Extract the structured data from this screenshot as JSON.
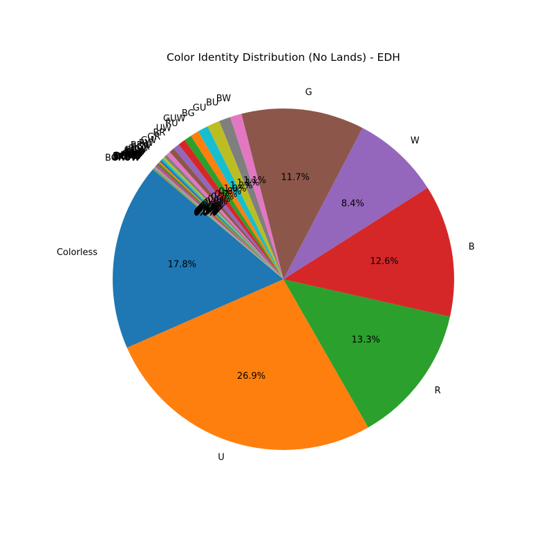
{
  "chart_data": {
    "type": "pie",
    "title": "Color Identity Distribution (No Lands) - EDH",
    "start_angle_deg": 140,
    "direction": "counterclockwise",
    "legend": "none",
    "slices": [
      {
        "label": "Colorless",
        "value": 17.8,
        "pct_text": "17.8%",
        "color": "#1f77b4"
      },
      {
        "label": "U",
        "value": 26.9,
        "pct_text": "26.9%",
        "color": "#ff7f0e"
      },
      {
        "label": "R",
        "value": 13.3,
        "pct_text": "13.3%",
        "color": "#2ca02c"
      },
      {
        "label": "B",
        "value": 12.6,
        "pct_text": "12.6%",
        "color": "#d62728"
      },
      {
        "label": "W",
        "value": 8.4,
        "pct_text": "8.4%",
        "color": "#9467bd"
      },
      {
        "label": "G",
        "value": 11.7,
        "pct_text": "11.7%",
        "color": "#8c564b"
      },
      {
        "label": "BW",
        "value": 1.1,
        "pct_text": "1.1%",
        "color": "#e377c2"
      },
      {
        "label": "BU",
        "value": 1.1,
        "pct_text": "1.1%",
        "color": "#7f7f7f"
      },
      {
        "label": "GU",
        "value": 1.2,
        "pct_text": "1.2%",
        "color": "#bcbd22"
      },
      {
        "label": "BG",
        "value": 1.0,
        "pct_text": "1.0%",
        "color": "#17becf"
      },
      {
        "label": "GUW",
        "value": 0.8,
        "pct_text": "0.8%",
        "color": "#ff7f0e"
      },
      {
        "label": "RU",
        "value": 0.7,
        "pct_text": "0.7%",
        "color": "#2ca02c"
      },
      {
        "label": "UW",
        "value": 0.7,
        "pct_text": "0.7%",
        "color": "#d62728"
      },
      {
        "label": "BR",
        "value": 0.6,
        "pct_text": "0.6%",
        "color": "#9467bd"
      },
      {
        "label": "GR",
        "value": 0.5,
        "pct_text": "0.5%",
        "color": "#8c564b"
      },
      {
        "label": "GW",
        "value": 0.4,
        "pct_text": "0.4%",
        "color": "#e377c2"
      },
      {
        "label": "RW",
        "value": 0.3,
        "pct_text": "0.3%",
        "color": "#7f7f7f"
      },
      {
        "label": "BRW",
        "value": 0.2,
        "pct_text": "0.2%",
        "color": "#bcbd22"
      },
      {
        "label": "BGR",
        "value": 0.2,
        "pct_text": "0.2%",
        "color": "#17becf"
      },
      {
        "label": "BGU",
        "value": 0.2,
        "pct_text": "0.2%",
        "color": "#1f77b4"
      },
      {
        "label": "BGW",
        "value": 0.15,
        "pct_text": "0.1%",
        "color": "#ff7f0e"
      },
      {
        "label": "BUW",
        "value": 0.15,
        "pct_text": "0.1%",
        "color": "#2ca02c"
      },
      {
        "label": "BRU",
        "value": 0.1,
        "pct_text": "0.1%",
        "color": "#d62728"
      },
      {
        "label": "GRW",
        "value": 0.1,
        "pct_text": "0.1%",
        "color": "#9467bd"
      },
      {
        "label": "GRU",
        "value": 0.1,
        "pct_text": "0.1%",
        "color": "#8c564b"
      },
      {
        "label": "RUW",
        "value": 0.1,
        "pct_text": "0.1%",
        "color": "#e377c2"
      },
      {
        "label": "BGRW",
        "value": 0.05,
        "pct_text": "0.0%",
        "color": "#7f7f7f"
      },
      {
        "label": "BGUW",
        "value": 0.05,
        "pct_text": "0.0%",
        "color": "#bcbd22"
      },
      {
        "label": "BGRU",
        "value": 0.05,
        "pct_text": "0.0%",
        "color": "#17becf"
      },
      {
        "label": "BRUW",
        "value": 0.05,
        "pct_text": "0.0%",
        "color": "#1f77b4"
      },
      {
        "label": "GRUW",
        "value": 0.05,
        "pct_text": "0.0%",
        "color": "#ff7f0e"
      },
      {
        "label": "BGRUW",
        "value": 0.05,
        "pct_text": "0.0%",
        "color": "#2ca02c"
      }
    ]
  }
}
